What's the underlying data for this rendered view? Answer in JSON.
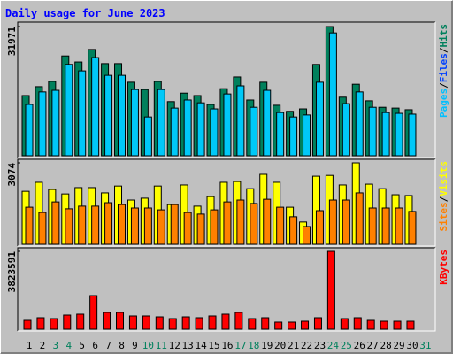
{
  "chart_data": {
    "type": "bar",
    "title": "Daily usage for June 2023",
    "categories": [
      1,
      2,
      3,
      4,
      5,
      6,
      7,
      8,
      9,
      10,
      11,
      12,
      13,
      14,
      15,
      16,
      17,
      18,
      19,
      20,
      21,
      22,
      23,
      24,
      25,
      26,
      27,
      28,
      29,
      30,
      31
    ],
    "weekends": [
      3,
      4,
      10,
      11,
      17,
      18,
      24,
      25,
      31
    ],
    "weekend_color": "#00805C",
    "panels": [
      {
        "ylim": [
          0,
          31971
        ],
        "yticks": [
          31971
        ],
        "legend": [
          "Pages",
          "/",
          "Files",
          "/",
          "Hits"
        ],
        "legend_colors": [
          "#00C0FF",
          "#000000",
          "#0040FF",
          "#000000",
          "#00805C"
        ],
        "series": [
          {
            "color": "#00805C",
            "values": [
              14900,
              17100,
              18400,
              24700,
              23200,
              26300,
              22800,
              22800,
              18200,
              16400,
              18400,
              13400,
              15500,
              14900,
              12700,
              16600,
              19500,
              13800,
              18200,
              12500,
              11000,
              11600,
              22600,
              31971,
              14500,
              17700,
              13600,
              12000,
              11800,
              11400,
              null
            ]
          },
          {
            "color": "#00C8F8",
            "values": [
              12700,
              15800,
              16200,
              22600,
              21000,
              24300,
              19900,
              19900,
              16400,
              9600,
              16400,
              11800,
              13800,
              13100,
              11600,
              15300,
              17300,
              12000,
              16200,
              10700,
              9600,
              10100,
              18200,
              30400,
              12900,
              15800,
              12000,
              10700,
              10500,
              10300,
              null
            ]
          }
        ]
      },
      {
        "ylim": [
          0,
          3074
        ],
        "yticks": [
          3074
        ],
        "legend": [
          "Sites",
          "/",
          "Visits"
        ],
        "legend_colors": [
          "#FF8000",
          "#000000",
          "#FFFF00"
        ],
        "series": [
          {
            "color": "#FFFF00",
            "values": [
              2000,
              2340,
              2070,
              1900,
              2140,
              2140,
              1940,
              2200,
              1670,
              1740,
              2200,
              1500,
              2240,
              1440,
              1800,
              2340,
              2370,
              2100,
              2640,
              2340,
              1400,
              840,
              2570,
              2600,
              2240,
              3074,
              2270,
              2100,
              1870,
              1840,
              null
            ]
          },
          {
            "color": "#FF8000",
            "values": [
              1400,
              1200,
              1600,
              1340,
              1440,
              1440,
              1570,
              1500,
              1370,
              1370,
              1300,
              1500,
              1200,
              1140,
              1300,
              1600,
              1670,
              1540,
              1700,
              1400,
              1040,
              670,
              1270,
              1670,
              1670,
              1940,
              1370,
              1370,
              1370,
              1240,
              null
            ]
          }
        ]
      },
      {
        "ylim": [
          0,
          3823591
        ],
        "yticks": [
          3823591
        ],
        "legend": [
          "KBytes"
        ],
        "legend_colors": [
          "#FF0000"
        ],
        "series": [
          {
            "color": "#FF0000",
            "values": [
              434500,
              565000,
              521000,
              695000,
              739000,
              1651000,
              826000,
              826000,
              652000,
              652000,
              608000,
              521000,
              608000,
              565000,
              652000,
              739000,
              826000,
              521000,
              565000,
              348000,
              348000,
              391000,
              565000,
              3823591,
              521000,
              565000,
              434500,
              391000,
              391000,
              391000,
              null
            ]
          }
        ]
      }
    ]
  }
}
